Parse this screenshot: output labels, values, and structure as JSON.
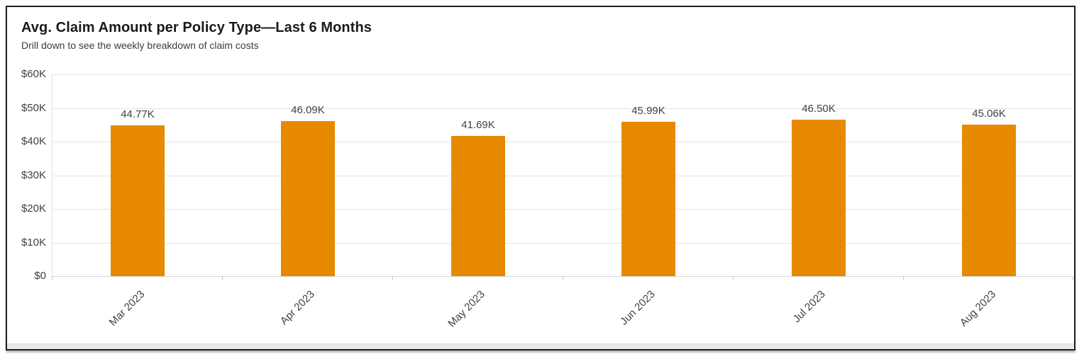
{
  "header": {
    "title": "Avg. Claim Amount per Policy Type—Last 6 Months",
    "subtitle": "Drill down to see the weekly breakdown of claim costs"
  },
  "colors": {
    "bar": "#e78a00",
    "gridline": "#e4e4e4",
    "axis_text": "#424242",
    "title_text": "#1a1a1a",
    "frame_border": "#1f1f1f"
  },
  "chart_data": {
    "type": "bar",
    "title": "Avg. Claim Amount per Policy Type—Last 6 Months",
    "subtitle": "Drill down to see the weekly breakdown of claim costs",
    "categories": [
      "Mar 2023",
      "Apr 2023",
      "May 2023",
      "Jun 2023",
      "Jul 2023",
      "Aug 2023"
    ],
    "values": [
      44770,
      46090,
      41690,
      45990,
      46500,
      45060
    ],
    "value_labels": [
      "44.77K",
      "46.09K",
      "41.69K",
      "45.99K",
      "46.50K",
      "45.06K"
    ],
    "xlabel": "",
    "ylabel": "",
    "ylim": [
      0,
      60000
    ],
    "y_tick_interval": 10000,
    "y_tick_labels": [
      "$60K",
      "$50K",
      "$40K",
      "$30K",
      "$20K",
      "$10K",
      "$0"
    ],
    "grid": true,
    "legend": "none",
    "bar_color": "#e78a00",
    "x_label_rotation": -45
  }
}
